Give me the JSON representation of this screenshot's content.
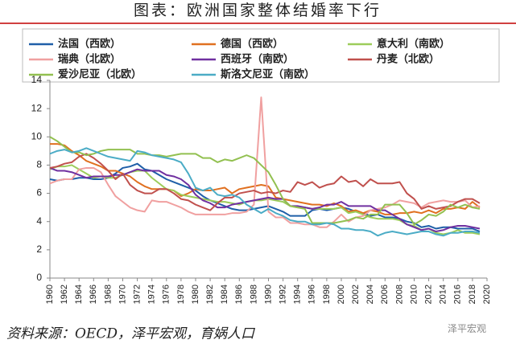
{
  "chart_data": {
    "type": "line",
    "title": "图表：欧洲国家整体结婚率下行",
    "source": "资料来源：OECD，泽平宏观，育娲人口",
    "watermark": "泽平宏观",
    "x": [
      1960,
      1961,
      1962,
      1963,
      1964,
      1965,
      1966,
      1967,
      1968,
      1969,
      1970,
      1971,
      1972,
      1973,
      1974,
      1975,
      1976,
      1977,
      1978,
      1979,
      1980,
      1981,
      1982,
      1983,
      1984,
      1985,
      1986,
      1987,
      1988,
      1989,
      1990,
      1991,
      1992,
      1993,
      1994,
      1995,
      1996,
      1997,
      1998,
      1999,
      2000,
      2001,
      2002,
      2003,
      2004,
      2005,
      2006,
      2007,
      2008,
      2009,
      2010,
      2011,
      2012,
      2013,
      2014,
      2015,
      2016,
      2017,
      2018,
      2019
    ],
    "xlim": [
      1960,
      2020
    ],
    "xticks": [
      1960,
      1962,
      1964,
      1966,
      1968,
      1970,
      1972,
      1974,
      1976,
      1978,
      1980,
      1982,
      1984,
      1986,
      1988,
      1990,
      1992,
      1994,
      1996,
      1998,
      2000,
      2002,
      2004,
      2006,
      2008,
      2010,
      2012,
      2014,
      2016,
      2018,
      2020
    ],
    "ylim": [
      0,
      14
    ],
    "yticks": [
      0,
      2,
      4,
      6,
      8,
      10,
      12,
      14
    ],
    "series": [
      {
        "name": "法国（西欧）",
        "color": "#1f5fa8",
        "values": [
          7.0,
          6.9,
          7.0,
          7.0,
          7.1,
          7.1,
          7.0,
          7.0,
          7.1,
          7.4,
          7.8,
          7.9,
          8.1,
          7.7,
          7.6,
          7.3,
          7.0,
          6.8,
          6.6,
          6.4,
          6.2,
          5.8,
          5.5,
          5.3,
          5.1,
          4.9,
          4.8,
          4.8,
          4.9,
          5.0,
          5.1,
          4.9,
          4.7,
          4.4,
          4.4,
          4.4,
          4.8,
          4.9,
          4.8,
          4.9,
          5.0,
          4.9,
          4.7,
          4.6,
          4.4,
          4.5,
          4.3,
          4.3,
          4.2,
          4.0,
          3.9,
          3.6,
          3.7,
          3.5,
          3.6,
          3.6,
          3.5,
          3.5,
          3.5,
          3.3
        ]
      },
      {
        "name": "德国（西欧）",
        "color": "#e07020",
        "values": [
          9.5,
          9.5,
          9.4,
          9.0,
          8.7,
          8.3,
          8.1,
          7.9,
          7.6,
          7.6,
          7.4,
          7.2,
          6.8,
          6.5,
          6.3,
          6.3,
          6.3,
          6.2,
          5.8,
          6.0,
          6.3,
          6.2,
          6.2,
          6.3,
          6.4,
          6.0,
          6.3,
          6.4,
          6.5,
          6.6,
          6.5,
          5.7,
          5.6,
          5.5,
          5.4,
          5.3,
          5.2,
          5.2,
          5.1,
          5.3,
          5.1,
          4.7,
          4.8,
          4.6,
          4.8,
          4.7,
          4.5,
          4.5,
          4.6,
          4.6,
          4.7,
          4.6,
          4.8,
          4.6,
          4.9,
          4.9,
          5.0,
          4.9,
          5.4,
          5.0
        ]
      },
      {
        "name": "意大利（南欧）",
        "color": "#9ccc5a",
        "values": [
          7.7,
          7.9,
          7.9,
          8.0,
          7.7,
          7.4,
          7.1,
          7.2,
          7.1,
          7.1,
          7.3,
          7.5,
          7.6,
          7.6,
          7.1,
          6.7,
          6.3,
          6.2,
          5.9,
          5.8,
          5.7,
          5.6,
          5.5,
          5.4,
          5.4,
          5.3,
          5.2,
          5.4,
          5.5,
          5.5,
          5.6,
          5.5,
          5.4,
          5.1,
          5.0,
          5.0,
          4.9,
          4.9,
          4.9,
          4.9,
          5.0,
          4.6,
          4.7,
          4.5,
          4.3,
          4.2,
          4.2,
          4.2,
          4.1,
          3.8,
          3.7,
          3.4,
          3.5,
          3.2,
          3.1,
          3.2,
          3.4,
          3.2,
          3.2,
          3.1
        ]
      },
      {
        "name": "瑞典（北欧）",
        "color": "#f0a0a0",
        "values": [
          6.7,
          6.9,
          7.0,
          7.0,
          7.7,
          7.8,
          7.8,
          7.5,
          6.6,
          5.8,
          5.4,
          5.0,
          4.8,
          4.7,
          5.5,
          5.4,
          5.4,
          5.2,
          5.0,
          4.7,
          4.5,
          4.5,
          4.5,
          4.5,
          4.5,
          4.6,
          4.6,
          4.7,
          5.2,
          12.8,
          4.7,
          4.3,
          4.3,
          3.9,
          3.9,
          3.8,
          3.8,
          3.6,
          3.6,
          4.0,
          4.5,
          4.0,
          4.3,
          4.4,
          4.8,
          4.9,
          5.0,
          5.2,
          5.5,
          5.4,
          5.3,
          5.0,
          5.3,
          5.4,
          5.5,
          5.4,
          5.4,
          5.5,
          5.0,
          5.1
        ]
      },
      {
        "name": "西班牙（南欧）",
        "color": "#7030a0",
        "values": [
          7.8,
          7.6,
          7.6,
          7.5,
          7.3,
          7.1,
          7.2,
          7.2,
          7.2,
          7.3,
          7.3,
          7.5,
          7.7,
          7.6,
          7.6,
          7.6,
          7.3,
          7.2,
          7.0,
          6.6,
          5.9,
          5.5,
          5.3,
          5.0,
          5.0,
          5.2,
          5.3,
          5.4,
          5.5,
          5.6,
          5.7,
          5.6,
          5.6,
          5.1,
          5.1,
          5.0,
          4.9,
          5.0,
          5.2,
          5.2,
          5.4,
          5.1,
          5.1,
          5.1,
          5.1,
          4.8,
          4.8,
          4.5,
          4.2,
          3.8,
          3.6,
          3.4,
          3.5,
          3.3,
          3.4,
          3.6,
          3.7,
          3.7,
          3.6,
          3.5
        ]
      },
      {
        "name": "丹麦（北欧）",
        "color": "#c0504d",
        "values": [
          7.8,
          7.9,
          8.1,
          8.2,
          8.6,
          8.8,
          8.5,
          8.1,
          7.6,
          7.0,
          7.4,
          6.6,
          6.2,
          6.0,
          6.0,
          6.3,
          6.3,
          6.0,
          5.6,
          5.5,
          5.2,
          5.0,
          4.8,
          5.3,
          5.7,
          5.7,
          6.0,
          6.1,
          6.2,
          6.0,
          6.1,
          6.0,
          6.2,
          6.1,
          6.8,
          6.6,
          6.8,
          6.4,
          6.6,
          6.7,
          7.2,
          6.8,
          6.9,
          6.5,
          7.0,
          6.7,
          6.7,
          6.7,
          6.8,
          6.0,
          5.6,
          4.9,
          5.1,
          4.9,
          5.0,
          5.1,
          5.4,
          5.6,
          5.6,
          5.3
        ]
      },
      {
        "name": "爱沙尼亚（北欧）",
        "color": "#92c050",
        "values": [
          10.0,
          9.7,
          9.3,
          8.9,
          8.9,
          8.7,
          8.8,
          9.0,
          9.1,
          9.1,
          9.1,
          9.1,
          8.8,
          8.8,
          8.7,
          8.7,
          8.6,
          8.7,
          8.8,
          8.8,
          8.8,
          8.5,
          8.5,
          8.2,
          8.4,
          8.3,
          8.5,
          8.7,
          8.5,
          8.0,
          7.5,
          6.6,
          5.6,
          5.1,
          5.0,
          4.9,
          3.9,
          3.9,
          3.9,
          3.9,
          4.0,
          4.1,
          4.3,
          4.2,
          4.5,
          4.5,
          5.2,
          5.2,
          5.2,
          4.6,
          3.8,
          4.1,
          4.5,
          4.4,
          4.7,
          5.2,
          5.0,
          5.2,
          5.0,
          4.9
        ]
      },
      {
        "name": "斯洛文尼亚（南欧）",
        "color": "#4bacc6",
        "values": [
          8.8,
          9.0,
          9.1,
          8.9,
          9.0,
          9.2,
          9.0,
          8.8,
          8.6,
          8.5,
          8.4,
          8.3,
          9.0,
          8.9,
          8.7,
          8.6,
          8.5,
          8.4,
          8.2,
          7.4,
          6.4,
          6.2,
          6.4,
          5.9,
          5.8,
          5.9,
          5.7,
          5.2,
          4.9,
          4.6,
          4.9,
          4.6,
          4.4,
          4.1,
          4.0,
          4.0,
          3.8,
          3.8,
          3.9,
          3.8,
          3.5,
          3.5,
          3.4,
          3.4,
          3.3,
          3.0,
          3.2,
          3.3,
          3.2,
          3.1,
          3.2,
          3.3,
          3.3,
          3.1,
          3.0,
          3.2,
          3.2,
          3.3,
          3.3,
          3.2
        ]
      }
    ]
  }
}
